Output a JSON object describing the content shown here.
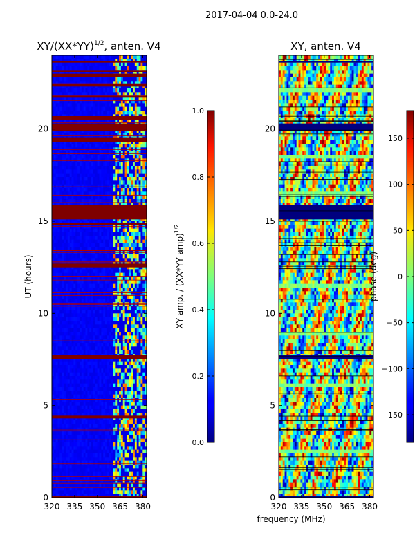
{
  "suptitle": "2017-04-04 0.0-24.0",
  "chart_data": [
    {
      "type": "heatmap",
      "title": "XY/(XX*YY)",
      "title_sup": "1/2",
      "title_suffix": ", anten. V4",
      "xlabel": "",
      "ylabel": "UT (hours)",
      "xlim": [
        320,
        382.5
      ],
      "ylim": [
        0,
        24
      ],
      "xticks": [
        "320",
        "335",
        "350",
        "365",
        "380"
      ],
      "xtick_values": [
        320,
        335,
        350,
        365,
        380
      ],
      "yticks": [
        "0",
        "5",
        "10",
        "15",
        "20"
      ],
      "ytick_values": [
        0,
        5,
        10,
        15,
        20
      ],
      "flagged_bands_hours": [
        [
          0.0,
          0.1
        ],
        [
          4.3,
          4.45
        ],
        [
          7.5,
          7.75
        ],
        [
          12.5,
          12.7
        ],
        [
          14.8,
          14.9
        ],
        [
          15.1,
          15.9
        ],
        [
          19.3,
          19.55
        ],
        [
          19.9,
          20.3
        ],
        [
          20.5,
          20.7
        ],
        [
          21.7,
          21.8
        ],
        [
          22.3,
          22.45
        ],
        [
          22.8,
          23.0
        ],
        [
          23.1,
          23.2
        ],
        [
          23.6,
          23.7
        ]
      ],
      "active_band_mhz": [
        360,
        382.5
      ],
      "colorbar": {
        "label": "XY amp. / (XX*YY amp)",
        "label_sup": "1/2",
        "range": [
          0.0,
          1.0
        ],
        "ticks": [
          "0.0",
          "0.2",
          "0.4",
          "0.6",
          "0.8",
          "1.0"
        ],
        "tick_values": [
          0.0,
          0.2,
          0.4,
          0.6,
          0.8,
          1.0
        ]
      }
    },
    {
      "type": "heatmap",
      "title": "XY, anten. V4",
      "xlabel": "frequency (MHz)",
      "ylabel": "",
      "xlim": [
        320,
        382.5
      ],
      "ylim": [
        0,
        24
      ],
      "xticks": [
        "320",
        "335",
        "350",
        "365",
        "380"
      ],
      "xtick_values": [
        320,
        335,
        350,
        365,
        380
      ],
      "yticks": [
        "0",
        "5",
        "10",
        "15",
        "20"
      ],
      "ytick_values": [
        0,
        5,
        10,
        15,
        20
      ],
      "flagged_bands_hours": [
        [
          0.0,
          0.1
        ],
        [
          7.5,
          7.75
        ],
        [
          15.1,
          15.9
        ],
        [
          19.9,
          20.3
        ],
        [
          23.6,
          23.7
        ]
      ],
      "colorbar": {
        "label": "phase (deg)",
        "range": [
          -180,
          180
        ],
        "ticks": [
          "−150",
          "−100",
          "−50",
          "0",
          "50",
          "100",
          "150"
        ],
        "tick_values": [
          -150,
          -100,
          -50,
          0,
          50,
          100,
          150
        ]
      }
    }
  ]
}
